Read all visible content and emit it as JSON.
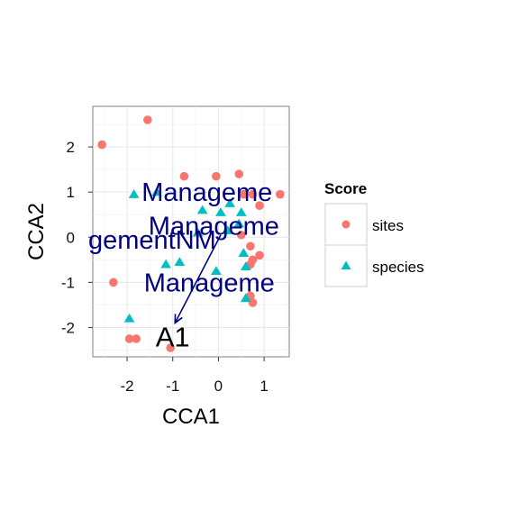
{
  "chart_data": {
    "type": "scatter",
    "title": "",
    "xlabel": "CCA1",
    "ylabel": "CCA2",
    "xlim": [
      -2.75,
      1.55
    ],
    "ylim": [
      -2.65,
      2.9
    ],
    "xticks": [
      -2,
      -1,
      0,
      1
    ],
    "yticks": [
      -2,
      -1,
      0,
      1,
      2
    ],
    "xtick_labels": [
      "-2",
      "-1",
      "0",
      "1"
    ],
    "ytick_labels": [
      "-2",
      "-1",
      "0",
      "1",
      "2"
    ],
    "grid": true,
    "legend": {
      "title": "Score",
      "position": "right",
      "entries": [
        {
          "label": "sites",
          "shape": "circle",
          "color": "#F8766D"
        },
        {
          "label": "species",
          "shape": "triangle",
          "color": "#00BFC4"
        }
      ]
    },
    "series": [
      {
        "name": "sites",
        "color": "#F8766D",
        "points": [
          {
            "x": -2.55,
            "y": 2.05
          },
          {
            "x": -1.55,
            "y": 2.6
          },
          {
            "x": -0.75,
            "y": 1.35
          },
          {
            "x": -0.05,
            "y": 1.35
          },
          {
            "x": 0.45,
            "y": 1.4
          },
          {
            "x": 0.55,
            "y": 0.95
          },
          {
            "x": 0.75,
            "y": 0.95
          },
          {
            "x": 1.35,
            "y": 0.95
          },
          {
            "x": 0.9,
            "y": 0.7
          },
          {
            "x": 0.5,
            "y": 0.05
          },
          {
            "x": 0.7,
            "y": -0.2
          },
          {
            "x": 0.9,
            "y": -0.4
          },
          {
            "x": 0.75,
            "y": -0.5
          },
          {
            "x": 0.7,
            "y": -0.6
          },
          {
            "x": 0.7,
            "y": -1.3
          },
          {
            "x": 0.75,
            "y": -1.45
          },
          {
            "x": -2.3,
            "y": -1.0
          },
          {
            "x": -1.95,
            "y": -2.25
          },
          {
            "x": -1.8,
            "y": -2.25
          },
          {
            "x": -1.05,
            "y": -2.45
          }
        ]
      },
      {
        "name": "species",
        "color": "#00BFC4",
        "points": [
          {
            "x": -1.85,
            "y": 0.95
          },
          {
            "x": -1.35,
            "y": 1.0
          },
          {
            "x": -0.35,
            "y": 0.6
          },
          {
            "x": 0.05,
            "y": 0.55
          },
          {
            "x": 0.25,
            "y": 0.75
          },
          {
            "x": 0.5,
            "y": 0.55
          },
          {
            "x": 0.45,
            "y": 0.3
          },
          {
            "x": -0.45,
            "y": 0.1
          },
          {
            "x": 0.2,
            "y": 0.15
          },
          {
            "x": 0.55,
            "y": -0.35
          },
          {
            "x": 0.6,
            "y": -0.65
          },
          {
            "x": -1.15,
            "y": -0.6
          },
          {
            "x": -0.85,
            "y": -0.55
          },
          {
            "x": -0.05,
            "y": -0.75
          },
          {
            "x": 0.6,
            "y": -1.35
          },
          {
            "x": -1.95,
            "y": -1.8
          }
        ]
      }
    ],
    "biplot_labels": [
      {
        "text": "Manageme",
        "x": -0.25,
        "y": 1.0
      },
      {
        "text": "Manageme",
        "x": -0.1,
        "y": 0.25
      },
      {
        "text": "gementNM",
        "x": -1.45,
        "y": -0.05
      },
      {
        "text": "Manageme",
        "x": -0.2,
        "y": -1.0
      }
    ],
    "arrow": {
      "from": {
        "x": 0.05,
        "y": 0.05
      },
      "to": {
        "x": -0.95,
        "y": -1.9
      }
    },
    "arrow_label": {
      "text": "A1",
      "x": -1.0,
      "y": -2.2
    }
  }
}
